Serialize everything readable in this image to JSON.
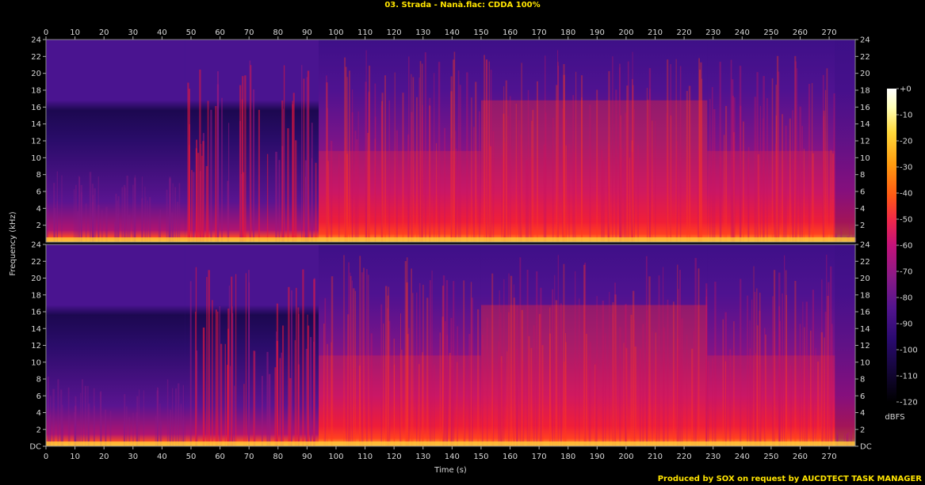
{
  "title": "03. Strada - Nanà.flac: CDDA 100%",
  "footer": "Produced by SOX on request by AUCDTECT TASK MANAGER",
  "chart_data": {
    "type": "heatmap",
    "title": "03. Strada - Nanà.flac: CDDA 100%",
    "xlabel": "Time (s)",
    "ylabel": "Frequency (kHz)",
    "xlim": [
      0,
      279
    ],
    "ylim": [
      0,
      24
    ],
    "x_ticks": [
      0,
      10,
      20,
      30,
      40,
      50,
      60,
      70,
      80,
      90,
      100,
      110,
      120,
      130,
      140,
      150,
      160,
      170,
      180,
      190,
      200,
      210,
      220,
      230,
      240,
      250,
      260,
      270
    ],
    "channels": [
      {
        "name": "top",
        "y_ticks": [
          "2",
          "4",
          "6",
          "8",
          "10",
          "12",
          "14",
          "16",
          "18",
          "20",
          "22",
          "24"
        ]
      },
      {
        "name": "bottom",
        "y_ticks": [
          "DC",
          "2",
          "4",
          "6",
          "8",
          "10",
          "12",
          "14",
          "16",
          "18",
          "20",
          "22",
          "24"
        ]
      }
    ],
    "colorbar": {
      "label": "dBFS",
      "ticks": [
        "+0",
        "-10",
        "-20",
        "-30",
        "-40",
        "-50",
        "-60",
        "-70",
        "-80",
        "-90",
        "-100",
        "-110",
        "-120"
      ],
      "range": [
        -120,
        0
      ]
    },
    "colors": [
      "#000000",
      "#140638",
      "#2a0a70",
      "#52148e",
      "#8a1a86",
      "#c4127a",
      "#f0284a",
      "#ff5a14",
      "#ff9c10",
      "#ffd83a",
      "#ffffb8",
      "#ffffff"
    ],
    "sections": [
      {
        "t_start": 0,
        "t_end": 48,
        "level": "quiet"
      },
      {
        "t_start": 48,
        "t_end": 94,
        "level": "pulses"
      },
      {
        "t_start": 94,
        "t_end": 150,
        "level": "loud"
      },
      {
        "t_start": 150,
        "t_end": 228,
        "level": "louder"
      },
      {
        "t_start": 228,
        "t_end": 272,
        "level": "loud"
      },
      {
        "t_start": 272,
        "t_end": 279,
        "level": "fade"
      }
    ]
  }
}
